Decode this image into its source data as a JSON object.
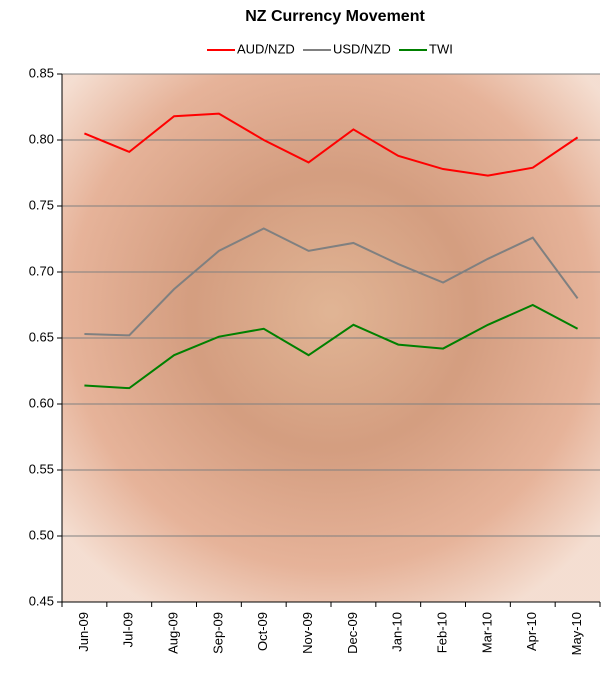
{
  "chart_data": {
    "type": "line",
    "title": "NZ Currency Movement",
    "categories": [
      "Jun-09",
      "Jul-09",
      "Aug-09",
      "Sep-09",
      "Oct-09",
      "Nov-09",
      "Dec-09",
      "Jan-10",
      "Feb-10",
      "Mar-10",
      "Apr-10",
      "May-10"
    ],
    "series": [
      {
        "name": "AUD/NZD",
        "color": "#ff0000",
        "values": [
          0.805,
          0.791,
          0.818,
          0.82,
          0.8,
          0.783,
          0.808,
          0.788,
          0.778,
          0.773,
          0.779,
          0.802
        ]
      },
      {
        "name": "USD/NZD",
        "color": "#808080",
        "values": [
          0.653,
          0.652,
          0.687,
          0.716,
          0.733,
          0.716,
          0.722,
          0.706,
          0.692,
          0.71,
          0.726,
          0.68
        ]
      },
      {
        "name": "TWI",
        "color": "#008000",
        "values": [
          0.614,
          0.612,
          0.637,
          0.651,
          0.657,
          0.637,
          0.66,
          0.645,
          0.642,
          0.66,
          0.675,
          0.657
        ]
      }
    ],
    "ylim": [
      0.45,
      0.85
    ],
    "yticks": [
      {
        "value": 0.45,
        "label": "0.45"
      },
      {
        "value": 0.5,
        "label": "0.50"
      },
      0.55,
      {
        "value": 0.6,
        "label": "0.60"
      },
      0.65,
      {
        "value": 0.7,
        "label": "0.70"
      },
      0.75,
      {
        "value": 0.8,
        "label": "0.80"
      },
      0.85
    ],
    "grid": true,
    "legend": "top"
  }
}
